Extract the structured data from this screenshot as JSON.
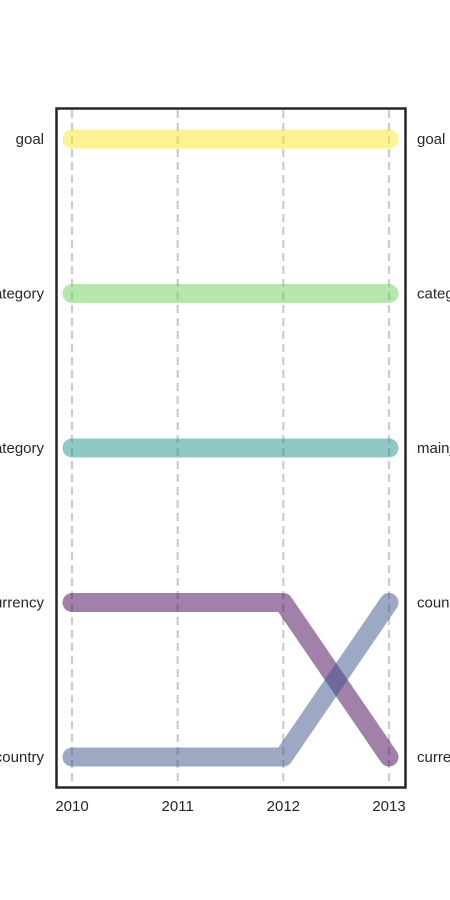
{
  "chart_data": {
    "type": "bump",
    "x": [
      2010,
      2011,
      2012,
      2013
    ],
    "x_tick_labels": [
      "2010",
      "2011",
      "2012",
      "2013"
    ],
    "left_labels": [
      "goal",
      "category",
      "main_category",
      "currency",
      "country"
    ],
    "right_labels": [
      "goal",
      "category",
      "main_category",
      "country",
      "currency"
    ],
    "series": [
      {
        "key": "goal",
        "ranks": [
          1,
          1,
          1,
          1
        ],
        "color": "#fde725"
      },
      {
        "key": "category",
        "ranks": [
          2,
          2,
          2,
          2
        ],
        "color": "#6ccd5a"
      },
      {
        "key": "main_category",
        "ranks": [
          3,
          3,
          3,
          3
        ],
        "color": "#21918c"
      },
      {
        "key": "currency",
        "ranks": [
          4,
          4,
          4,
          5
        ],
        "color": "#440154"
      },
      {
        "key": "country",
        "ranks": [
          5,
          5,
          5,
          4
        ],
        "color": "#3b528b"
      }
    ],
    "grid": "vertical dashed",
    "legend": "none"
  }
}
